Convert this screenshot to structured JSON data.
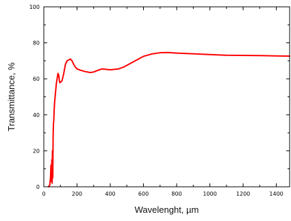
{
  "chart_data": {
    "type": "line",
    "title": "",
    "xlabel": "Wavelenght, µm",
    "ylabel": "Transmittance, %",
    "xlim": [
      0,
      1480
    ],
    "ylim": [
      0,
      100
    ],
    "x_ticks": [
      0,
      200,
      400,
      600,
      800,
      1000,
      1200,
      1400
    ],
    "y_ticks": [
      0,
      20,
      40,
      60,
      80,
      100
    ],
    "x_tick_labels": [
      "0",
      "200",
      "400",
      "600",
      "800",
      "1000",
      "1200",
      "1400"
    ],
    "y_tick_labels": [
      "0",
      "20",
      "40",
      "60",
      "80",
      "100"
    ],
    "grid": false,
    "line_color": "#ff0000",
    "series": [
      {
        "x": [
          28,
          36,
          40,
          43,
          46,
          48,
          50,
          52,
          54,
          56,
          58,
          60,
          62,
          65,
          70,
          75,
          80,
          85,
          90,
          95,
          100,
          110,
          120,
          130,
          140,
          150,
          160,
          170,
          180,
          190,
          200,
          220,
          250,
          280,
          300,
          320,
          350,
          380,
          400,
          450,
          480,
          500,
          550,
          600,
          650,
          700,
          750,
          800,
          850,
          900,
          1000,
          1100,
          1200,
          1300,
          1400,
          1480
        ],
        "y": [
          0,
          1,
          5,
          12,
          3,
          15,
          2,
          20,
          5,
          28,
          35,
          37,
          42,
          47,
          52,
          57,
          60,
          63,
          62,
          58,
          58,
          59,
          63,
          68,
          70,
          70.5,
          71,
          70,
          68,
          66.5,
          65.5,
          64.8,
          64,
          63.5,
          63.8,
          64.5,
          65.5,
          65.2,
          65,
          65.5,
          66.5,
          67.5,
          70,
          72.5,
          73.8,
          74.5,
          74.6,
          74.3,
          74.1,
          73.9,
          73.5,
          73.1,
          73,
          72.9,
          72.7,
          72.6
        ]
      }
    ]
  }
}
